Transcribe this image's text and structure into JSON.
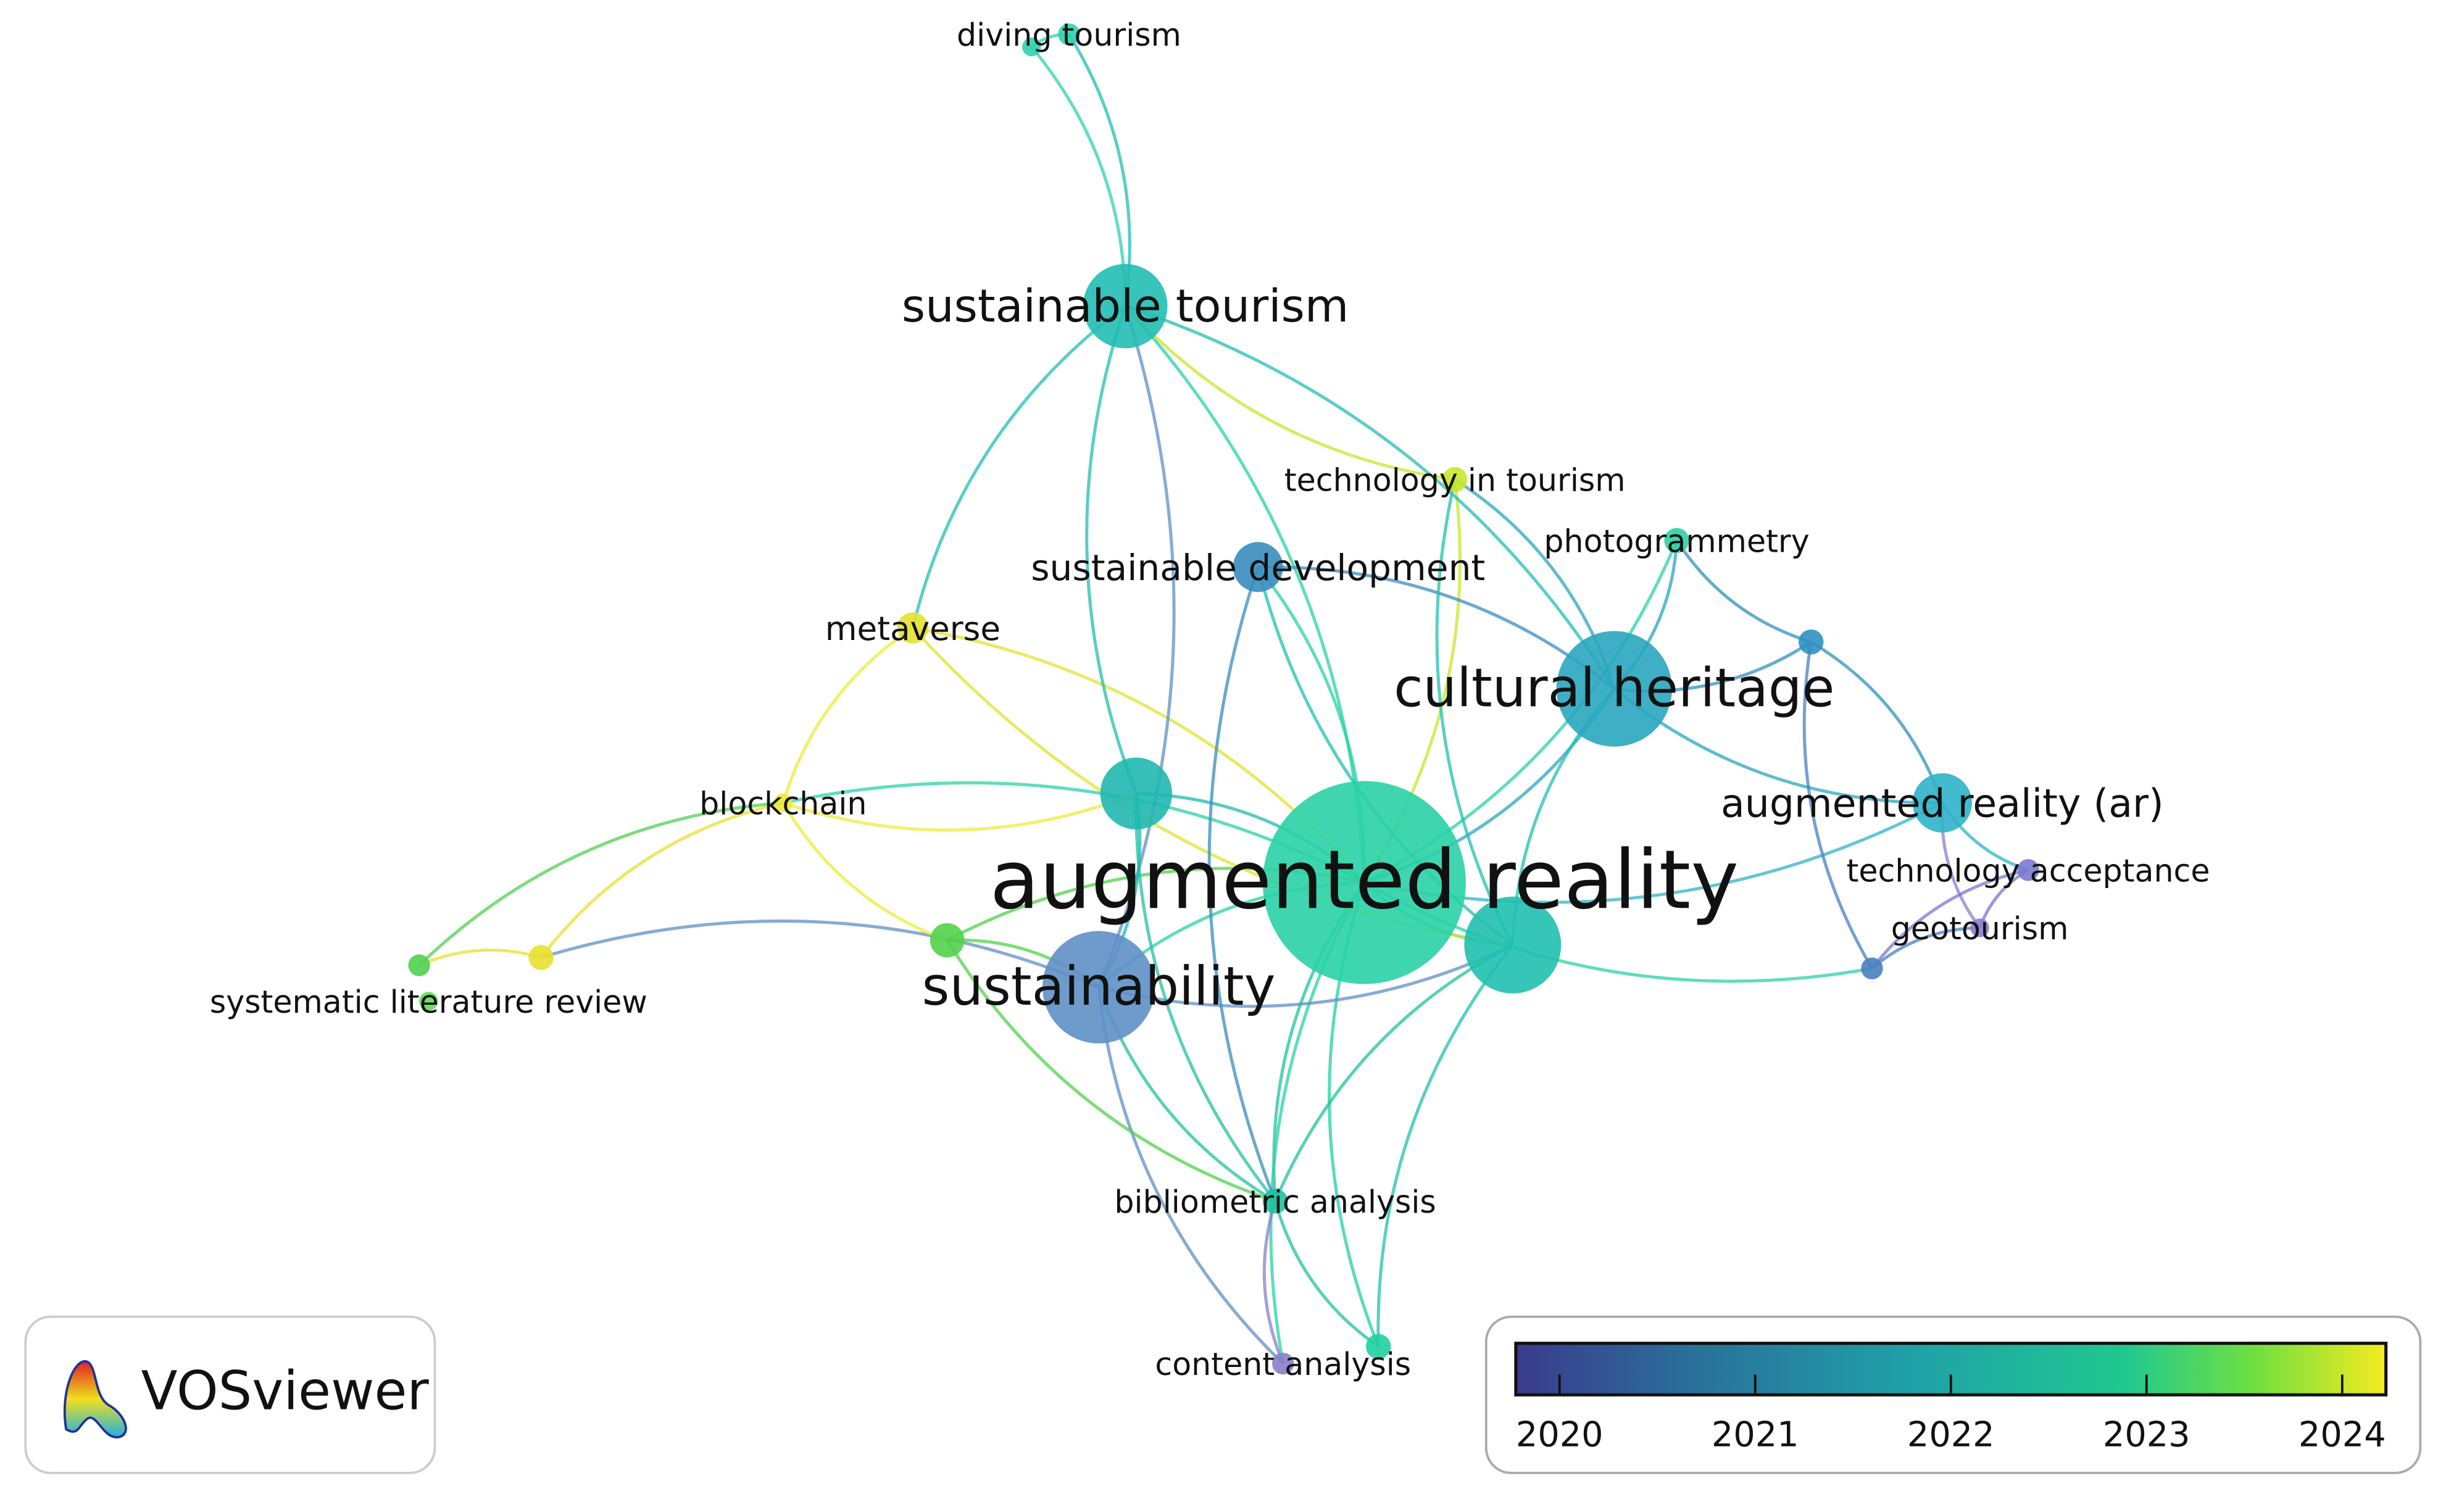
{
  "nodes": [
    {
      "label": "augmented reality"
    },
    {
      "label": "sustainability"
    },
    {
      "label": "cultural heritage"
    },
    {
      "label": "sustainable tourism"
    },
    {
      "label": "augmented reality (ar)"
    },
    {
      "label": "sustainable development"
    },
    {
      "label": "metaverse"
    },
    {
      "label": "blockchain"
    },
    {
      "label": "technology in tourism"
    },
    {
      "label": "photogrammetry"
    },
    {
      "label": "diving tourism"
    },
    {
      "label": "systematic literature review"
    },
    {
      "label": "technology acceptance"
    },
    {
      "label": "geotourism"
    },
    {
      "label": "bibliometric analysis"
    },
    {
      "label": "content analysis"
    }
  ],
  "logo": {
    "text": "VOSviewer"
  },
  "legend": {
    "ticks": [
      2020,
      2021,
      2022,
      2023,
      2024
    ]
  }
}
